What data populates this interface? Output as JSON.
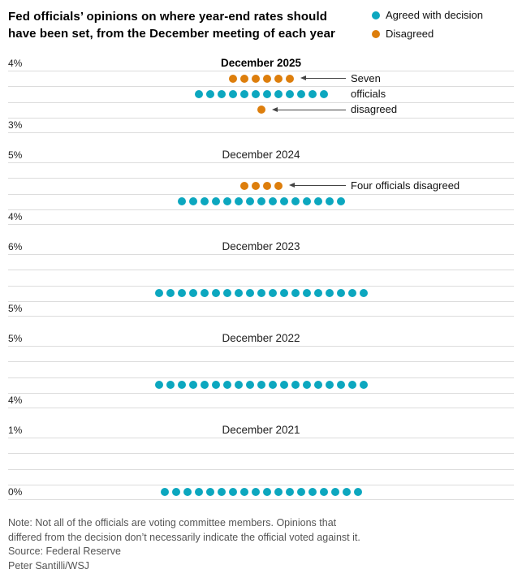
{
  "header": {
    "title_line1": "Fed officials’ opinions on where year-end rates should",
    "title_line2": "have been set, from the December meeting of each year",
    "legend": [
      {
        "key": "agreed",
        "label": "Agreed with decision",
        "color": "#0ca7bf"
      },
      {
        "key": "disagreed",
        "label": "Disagreed",
        "color": "#dd7e0c"
      }
    ]
  },
  "chart_data": {
    "type": "scatter",
    "title": "Fed officials’ opinions on where year-end rates should have been set, from the December meeting of each year",
    "unit": "percent",
    "grid": true,
    "legend_position": "top-right",
    "colors": {
      "agreed": "#0ca7bf",
      "disagreed": "#dd7e0c",
      "gridline": "#dcdcdc"
    },
    "panels": [
      {
        "title": "December 2025",
        "title_bold": true,
        "ymax": 4,
        "ymin": 3,
        "ymax_label": "4%",
        "ymin_label": "3%",
        "rows": [
          {
            "type": "disagreed",
            "value": 3.875,
            "count": 6
          },
          {
            "type": "agreed",
            "value": 3.625,
            "count": 12
          },
          {
            "type": "disagreed",
            "value": 3.375,
            "count": 1
          }
        ],
        "annotation": {
          "lines": [
            "Seven",
            "officials",
            "disagreed"
          ],
          "arrows": [
            {
              "to_value": 3.875
            },
            {
              "to_value": 3.375
            }
          ]
        }
      },
      {
        "title": "December 2024",
        "title_bold": false,
        "ymax": 5,
        "ymin": 4,
        "ymax_label": "5%",
        "ymin_label": "4%",
        "rows": [
          {
            "type": "disagreed",
            "value": 4.625,
            "count": 4
          },
          {
            "type": "agreed",
            "value": 4.375,
            "count": 15
          }
        ],
        "annotation": {
          "lines": [
            "Four officials disagreed"
          ],
          "arrows": [
            {
              "to_value": 4.625
            }
          ]
        }
      },
      {
        "title": "December 2023",
        "title_bold": false,
        "ymax": 6,
        "ymin": 5,
        "ymax_label": "6%",
        "ymin_label": "5%",
        "rows": [
          {
            "type": "agreed",
            "value": 5.375,
            "count": 19
          }
        ]
      },
      {
        "title": "December 2022",
        "title_bold": false,
        "ymax": 5,
        "ymin": 4,
        "ymax_label": "5%",
        "ymin_label": "4%",
        "rows": [
          {
            "type": "agreed",
            "value": 4.375,
            "count": 19
          }
        ]
      },
      {
        "title": "December 2021",
        "title_bold": false,
        "ymax": 1,
        "ymin": 0,
        "ymax_label": "1%",
        "ymin_label": "0%",
        "rows": [
          {
            "type": "agreed",
            "value": 0.125,
            "count": 18
          }
        ]
      }
    ]
  },
  "footer": {
    "note_line1": "Note: Not all of the officials are voting committee members. Opinions that",
    "note_line2": "differed from the decision don’t necessarily indicate the official voted against it.",
    "source": "Source: Federal Reserve",
    "credit": "Peter Santilli/WSJ"
  }
}
